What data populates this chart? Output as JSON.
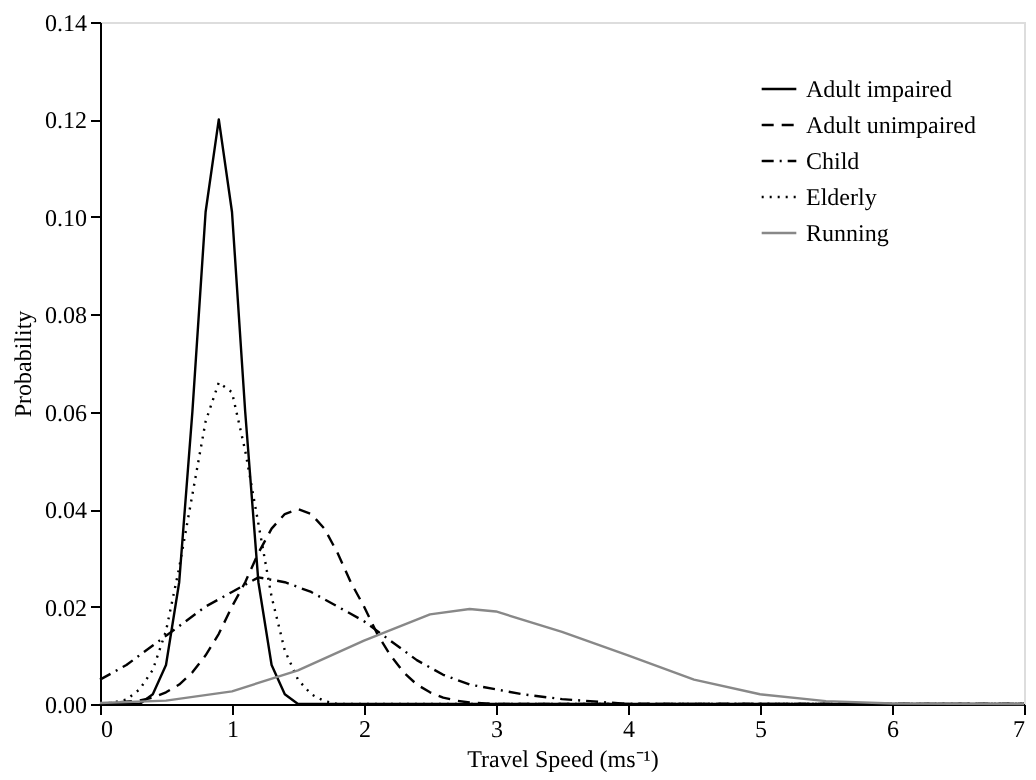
{
  "chart_data": {
    "type": "line",
    "xlabel": "Travel Speed (ms⁻¹)",
    "ylabel": "Probability",
    "xlim": [
      0,
      7
    ],
    "xticks": [
      0,
      1,
      2,
      3,
      4,
      5,
      6,
      7
    ],
    "ylim": [
      0,
      0.14
    ],
    "yticks": [
      {
        "value": 0,
        "label": "0.00"
      },
      {
        "value": 0.02,
        "label": "0.02"
      },
      {
        "value": 0.04,
        "label": "0.04"
      },
      {
        "value": 0.06,
        "label": "0.06"
      },
      {
        "value": 0.08,
        "label": "0.08"
      },
      {
        "value": 0.1,
        "label": "0.10"
      },
      {
        "value": 0.12,
        "label": "0.12"
      },
      {
        "value": 0.14,
        "label": "0.14"
      }
    ],
    "grid": false,
    "legend": "top right",
    "marker": "none",
    "series": [
      {
        "name": "Adult impaired",
        "color": "#000000",
        "line_style": "solid",
        "x": [
          0,
          0.3,
          0.4,
          0.5,
          0.6,
          0.7,
          0.8,
          0.9,
          1.0,
          1.1,
          1.2,
          1.3,
          1.4,
          1.5,
          7
        ],
        "values": [
          0,
          0,
          0.002,
          0.008,
          0.025,
          0.06,
          0.101,
          0.12,
          0.101,
          0.06,
          0.025,
          0.008,
          0.002,
          0,
          0
        ]
      },
      {
        "name": "Adult unimpaired",
        "color": "#000000",
        "line_style": "dashed",
        "x": [
          0,
          0.3,
          0.4,
          0.5,
          0.6,
          0.7,
          0.8,
          0.9,
          1.0,
          1.1,
          1.2,
          1.3,
          1.4,
          1.5,
          1.6,
          1.7,
          1.8,
          1.9,
          2.0,
          2.1,
          2.2,
          2.3,
          2.4,
          2.5,
          2.6,
          2.7,
          2.8,
          3.0,
          7
        ],
        "values": [
          0,
          0.0007,
          0.0013,
          0.0024,
          0.004,
          0.0065,
          0.01,
          0.0144,
          0.02,
          0.025,
          0.031,
          0.036,
          0.039,
          0.04,
          0.039,
          0.036,
          0.031,
          0.025,
          0.02,
          0.0144,
          0.01,
          0.0065,
          0.004,
          0.0024,
          0.0013,
          0.0007,
          0.0003,
          0,
          0
        ]
      },
      {
        "name": "Child",
        "color": "#000000",
        "line_style": "dashdot",
        "x": [
          0,
          0.2,
          0.4,
          0.6,
          0.8,
          1.0,
          1.2,
          1.4,
          1.6,
          1.8,
          2.0,
          2.2,
          2.4,
          2.6,
          2.8,
          3.0,
          3.2,
          3.5,
          4.0,
          7
        ],
        "values": [
          0.005,
          0.008,
          0.012,
          0.016,
          0.02,
          0.023,
          0.026,
          0.025,
          0.023,
          0.02,
          0.017,
          0.013,
          0.009,
          0.006,
          0.004,
          0.003,
          0.002,
          0.001,
          0,
          0
        ]
      },
      {
        "name": "Elderly",
        "color": "#000000",
        "line_style": "dotted",
        "x": [
          0,
          0.1,
          0.2,
          0.3,
          0.4,
          0.5,
          0.6,
          0.7,
          0.8,
          0.9,
          1.0,
          1.1,
          1.2,
          1.3,
          1.4,
          1.5,
          1.6,
          1.7,
          1.8,
          7
        ],
        "values": [
          0,
          0.0003,
          0.0009,
          0.003,
          0.007,
          0.015,
          0.028,
          0.043,
          0.058,
          0.066,
          0.064,
          0.052,
          0.037,
          0.022,
          0.011,
          0.005,
          0.002,
          0.0006,
          0,
          0
        ]
      },
      {
        "name": "Running",
        "color": "#888888",
        "line_style": "solid",
        "x": [
          0,
          0.5,
          1.0,
          1.5,
          2.0,
          2.5,
          2.8,
          3.0,
          3.5,
          4.0,
          4.5,
          5.0,
          5.5,
          6.0,
          7
        ],
        "values": [
          0.0002,
          0.0007,
          0.0026,
          0.0069,
          0.013,
          0.0184,
          0.0195,
          0.019,
          0.0148,
          0.01,
          0.005,
          0.002,
          0.0006,
          0.0001,
          0
        ]
      }
    ]
  }
}
